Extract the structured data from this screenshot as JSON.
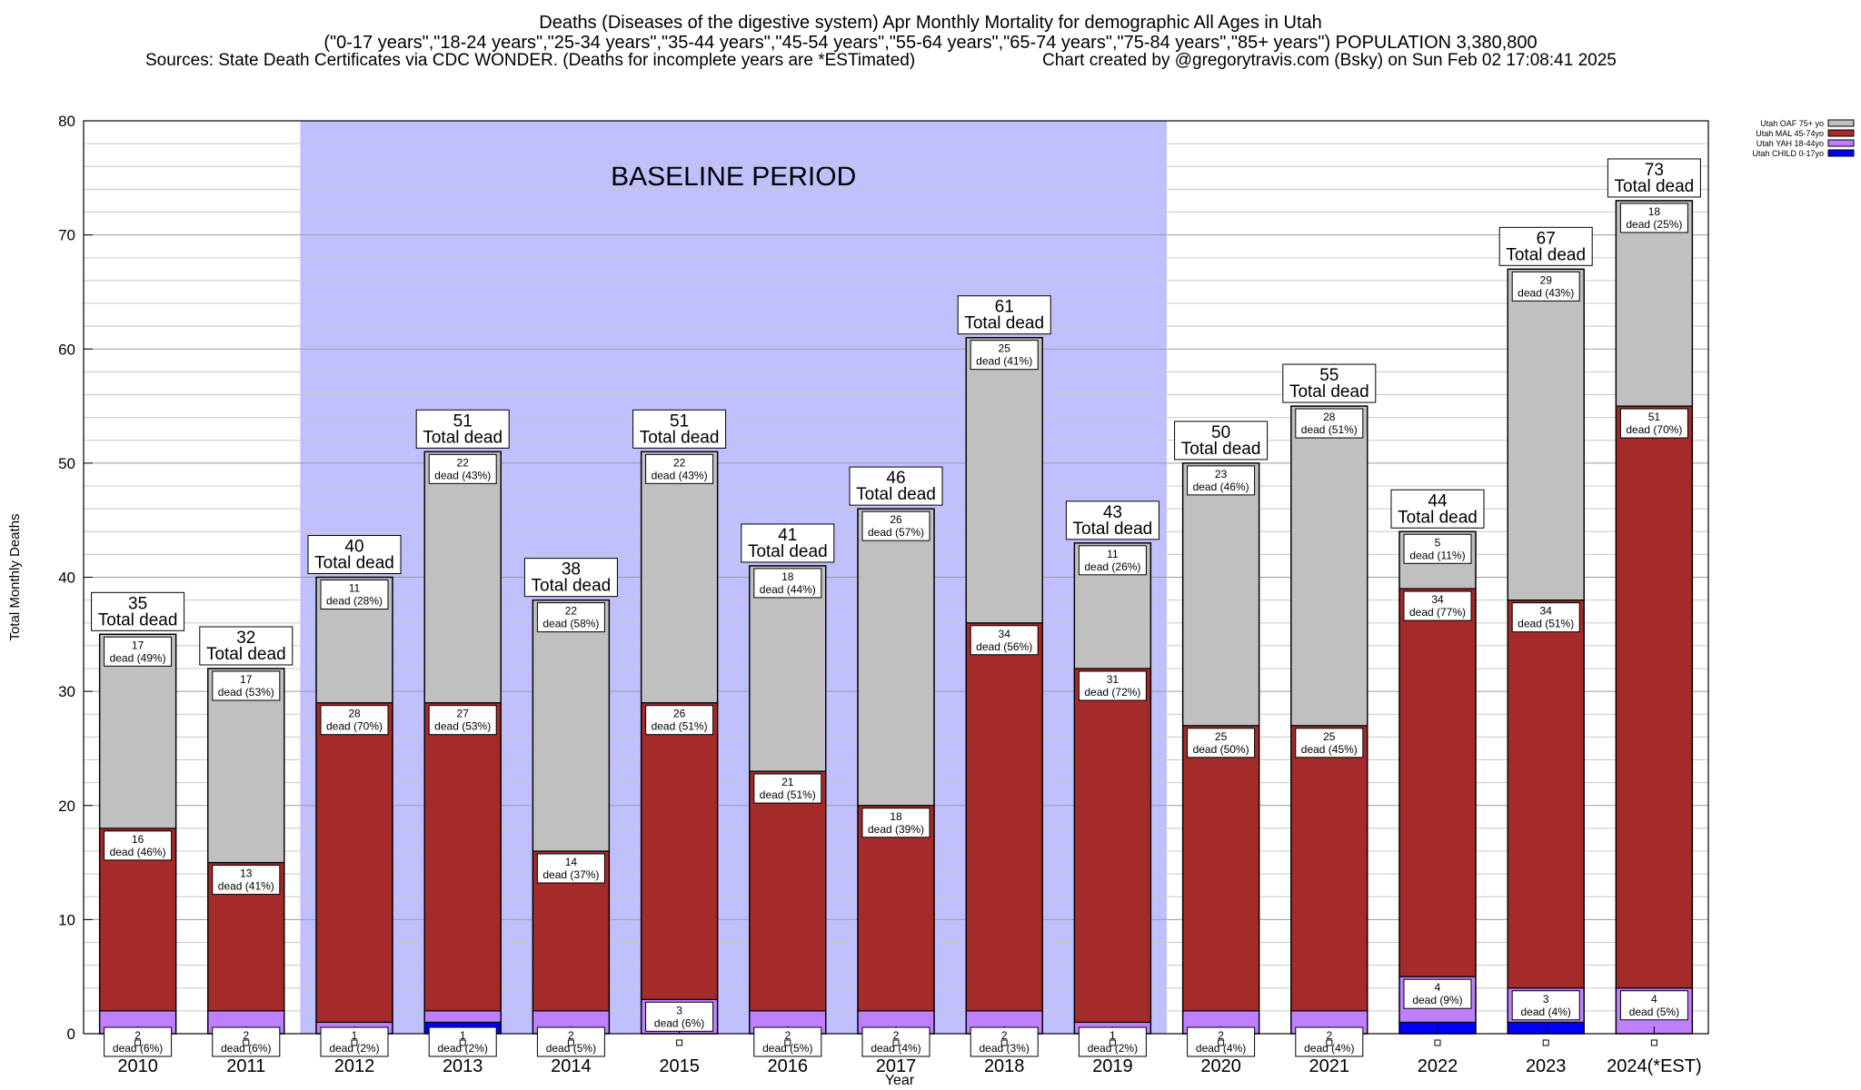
{
  "title": {
    "line1": "Deaths (Diseases of the digestive system) Apr Monthly Mortality for demographic All Ages in Utah",
    "line2": "(\"0-17 years\",\"18-24 years\",\"25-34 years\",\"35-44 years\",\"45-54 years\",\"55-64 years\",\"65-74 years\",\"75-84 years\",\"85+ years\") POPULATION 3,380,800",
    "line3_left": "Sources: State Death Certificates via CDC WONDER. (Deaths for incomplete years are *ESTimated)",
    "line3_right": "Chart created by @gregorytravis.com (Bsky) on Sun Feb 02 17:08:41 2025"
  },
  "chart_data": {
    "type": "bar",
    "stacked": true,
    "title": "Deaths (Diseases of the digestive system) Apr Monthly Mortality for demographic All Ages in Utah",
    "xlabel": "Year",
    "ylabel": "Total Monthly Deaths",
    "ylim": [
      0,
      80
    ],
    "yticks": [
      0,
      10,
      20,
      30,
      40,
      50,
      60,
      70,
      80
    ],
    "grid": true,
    "legend_position": "top-right",
    "categories": [
      "2010",
      "2011",
      "2012",
      "2013",
      "2014",
      "2015",
      "2016",
      "2017",
      "2018",
      "2019",
      "2020",
      "2021",
      "2022",
      "2023",
      "2024(*EST)"
    ],
    "series": [
      {
        "name": "Utah CHILD 0-17yo",
        "color": "#0000ff",
        "values": [
          0,
          0,
          0,
          1,
          0,
          0,
          0,
          0,
          0,
          0,
          0,
          0,
          1,
          1,
          0
        ],
        "labels": [
          "",
          "",
          "",
          "",
          "",
          "",
          "",
          "",
          "",
          "",
          "",
          "",
          "",
          "",
          ""
        ]
      },
      {
        "name": "Utah YAH 18-44yo",
        "color": "#bf80ff",
        "values": [
          2,
          2,
          1,
          1,
          2,
          3,
          2,
          2,
          2,
          1,
          2,
          2,
          4,
          3,
          4
        ],
        "labels": [
          "(6%)",
          "(6%)",
          "(2%)",
          "(2%)",
          "(5%)",
          "(6%)",
          "(5%)",
          "(4%)",
          "(3%)",
          "(2%)",
          "(4%)",
          "(4%)",
          "(9%)",
          "(4%)",
          "(5%)"
        ]
      },
      {
        "name": "Utah MAL 45-74yo",
        "color": "#a52a2a",
        "values": [
          16,
          13,
          28,
          27,
          14,
          26,
          21,
          18,
          34,
          31,
          25,
          25,
          34,
          34,
          51
        ],
        "labels": [
          "(46%)",
          "(41%)",
          "(70%)",
          "(53%)",
          "(37%)",
          "(51%)",
          "(51%)",
          "(39%)",
          "(56%)",
          "(72%)",
          "(50%)",
          "(45%)",
          "(77%)",
          "(51%)",
          "(70%)"
        ]
      },
      {
        "name": "Utah OAF 75+ yo",
        "color": "#c0c0c0",
        "values": [
          17,
          17,
          11,
          22,
          22,
          22,
          18,
          26,
          25,
          11,
          23,
          28,
          5,
          29,
          18
        ],
        "labels": [
          "(49%)",
          "(53%)",
          "(28%)",
          "(43%)",
          "(58%)",
          "(43%)",
          "(44%)",
          "(57%)",
          "(41%)",
          "(26%)",
          "(46%)",
          "(51%)",
          "(11%)",
          "(43%)",
          "(25%)"
        ]
      }
    ],
    "totals": [
      35,
      32,
      40,
      51,
      38,
      51,
      41,
      46,
      61,
      43,
      50,
      55,
      44,
      67,
      73
    ],
    "total_label": "Total dead",
    "segment_label_word": "dead",
    "baseline": {
      "label": "BASELINE PERIOD",
      "from": "2012",
      "to": "2019",
      "color": "#c0c0ff"
    },
    "bar_outline_color": "#000000"
  }
}
